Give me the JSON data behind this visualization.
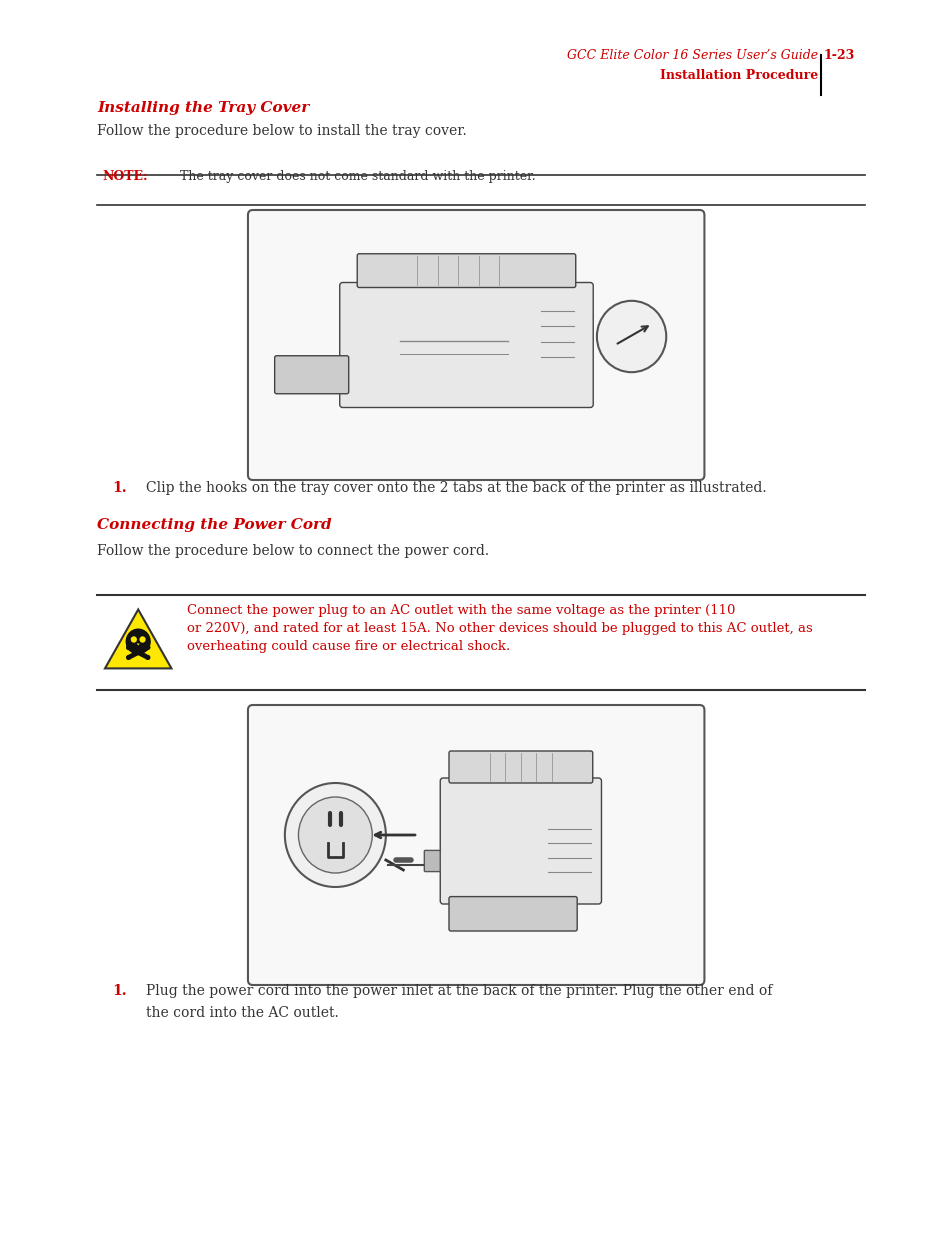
{
  "bg_color": "#ffffff",
  "page_width": 9.54,
  "page_height": 12.35,
  "header_text_left": "GCC Elite Color 16 Series User’s Guide",
  "header_page": "1-23",
  "header_subtext": "Installation Procedure",
  "header_color": "#cc0000",
  "header_line_color": "#000000",
  "section1_title": "Installing the Tray Cover",
  "section1_title_color": "#cc0000",
  "section1_intro": "Follow the procedure below to install the tray cover.",
  "note_label": "NOTE:",
  "note_label_color": "#cc0000",
  "note_text": "The tray cover does not come standard with the printer.",
  "step1_number": "1.",
  "step1_number_color": "#cc0000",
  "step1_text": "Clip the hooks on the tray cover onto the 2 tabs at the back of the printer as illustrated.",
  "section2_title": "Connecting the Power Cord",
  "section2_title_color": "#cc0000",
  "section2_intro": "Follow the procedure below to connect the power cord.",
  "warning_label": "WARNING:",
  "warning_text": "Connect the power plug to an AC outlet with the same voltage as the printer (110\nor 220V), and rated for at least 15A. No other devices should be plugged to this AC outlet, as\noverheating could cause fire or electrical shock.",
  "warning_color": "#cc0000",
  "step2_number": "1.",
  "step2_number_color": "#cc0000",
  "step2_text": "Plug the power cord into the power inlet at the back of the printer. Plug the other end of\nthe cord into the AC outlet.",
  "text_color": "#333333",
  "line_color": "#333333",
  "font_size_section_title": 11,
  "font_size_body": 10,
  "font_size_header": 9,
  "font_size_note": 9,
  "font_size_warning": 9.5
}
